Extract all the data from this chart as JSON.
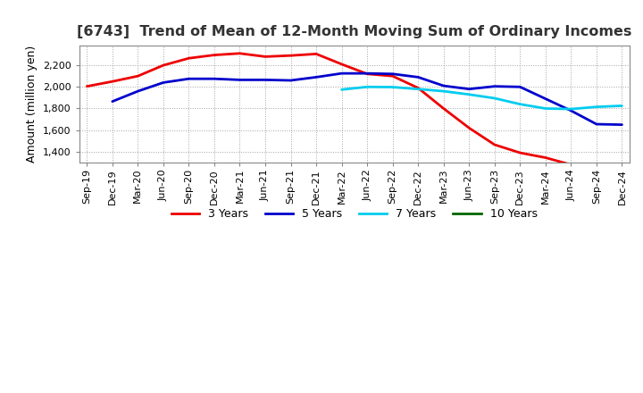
{
  "title": "[6743]  Trend of Mean of 12-Month Moving Sum of Ordinary Incomes",
  "ylabel": "Amount (million yen)",
  "background_color": "#ffffff",
  "plot_bg_color": "#ffffff",
  "grid_color": "#999999",
  "x_labels": [
    "Sep-19",
    "Dec-19",
    "Mar-20",
    "Jun-20",
    "Sep-20",
    "Dec-20",
    "Mar-21",
    "Jun-21",
    "Sep-21",
    "Dec-21",
    "Mar-22",
    "Jun-22",
    "Sep-22",
    "Dec-22",
    "Mar-23",
    "Jun-23",
    "Sep-23",
    "Dec-23",
    "Mar-24",
    "Jun-24",
    "Sep-24",
    "Dec-24"
  ],
  "ylim": [
    1300,
    2380
  ],
  "yticks": [
    1400,
    1600,
    1800,
    2000,
    2200
  ],
  "series": {
    "3 Years": {
      "color": "#ee0000",
      "linewidth": 2.0,
      "data_x": [
        0,
        1,
        2,
        3,
        4,
        5,
        6,
        7,
        8,
        9,
        10,
        11,
        12,
        13,
        14,
        15,
        16,
        17,
        18,
        19,
        20
      ],
      "data_y": [
        2005,
        2050,
        2100,
        2200,
        2265,
        2295,
        2310,
        2280,
        2290,
        2305,
        2210,
        2120,
        2100,
        1990,
        1800,
        1620,
        1465,
        1390,
        1345,
        1280,
        1255
      ]
    },
    "5 Years": {
      "color": "#0000cc",
      "linewidth": 2.0,
      "data_x": [
        1,
        2,
        3,
        4,
        5,
        6,
        7,
        8,
        9,
        10,
        11,
        12,
        13,
        14,
        15,
        16,
        17,
        18,
        19,
        20,
        21
      ],
      "data_y": [
        1865,
        1960,
        2040,
        2075,
        2075,
        2065,
        2065,
        2060,
        2090,
        2125,
        2125,
        2120,
        2090,
        2010,
        1980,
        2005,
        2000,
        1890,
        1780,
        1655,
        1650
      ]
    },
    "7 Years": {
      "color": "#00ccee",
      "linewidth": 2.0,
      "data_x": [
        10,
        11,
        12,
        13,
        14,
        15,
        16,
        17,
        18,
        19,
        20,
        21
      ],
      "data_y": [
        1975,
        2000,
        1998,
        1980,
        1960,
        1930,
        1895,
        1840,
        1800,
        1795,
        1815,
        1825
      ]
    },
    "10 Years": {
      "color": "#006600",
      "linewidth": 2.0,
      "data_x": [],
      "data_y": []
    }
  },
  "legend_labels": [
    "3 Years",
    "5 Years",
    "7 Years",
    "10 Years"
  ],
  "legend_colors": [
    "#ee0000",
    "#0000cc",
    "#00ccee",
    "#006600"
  ],
  "title_fontsize": 11.5,
  "tick_fontsize": 8,
  "ylabel_fontsize": 9
}
